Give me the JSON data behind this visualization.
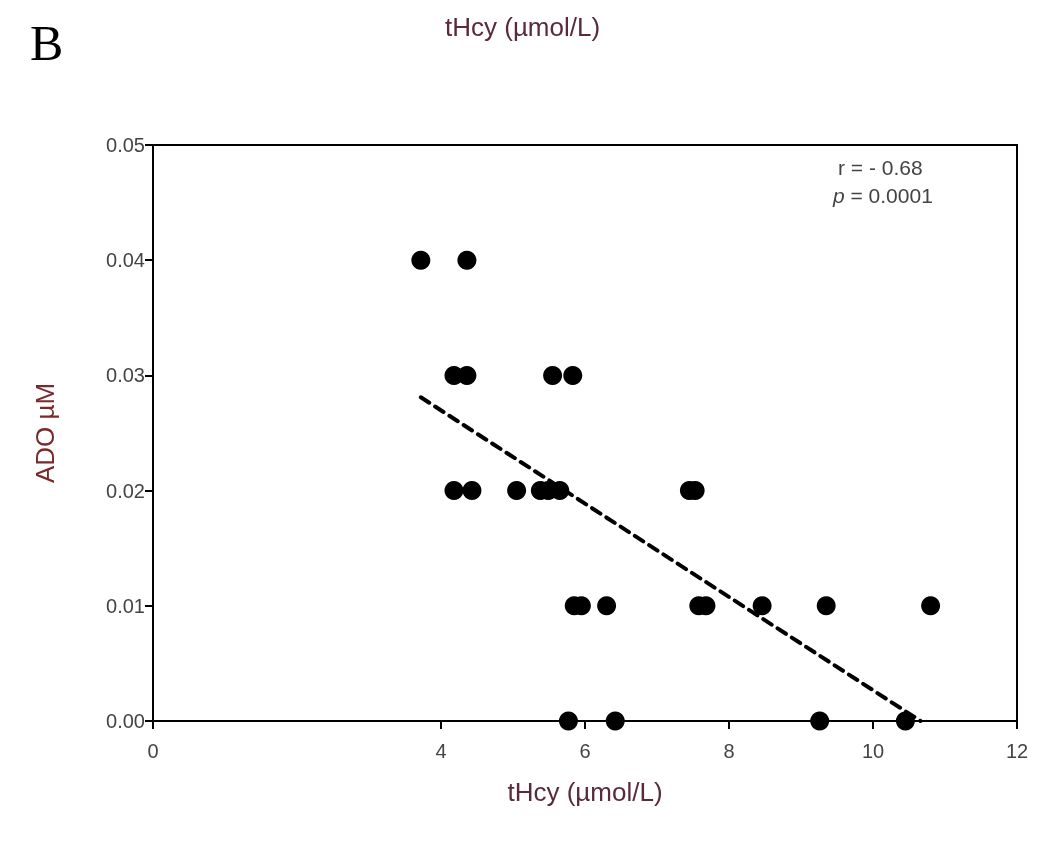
{
  "chart_data": {
    "type": "scatter",
    "xlabel": "tHcy (µmol/L)",
    "ylabel": "ADO µM",
    "annotations": [
      "B",
      "tHcy (µmol/L)",
      "r = - 0.68",
      "p = 0.0001"
    ],
    "xlim": [
      0,
      12
    ],
    "xticks": [
      0,
      4,
      6,
      8,
      10,
      12
    ],
    "ylim": [
      0,
      0.05
    ],
    "yticks": [
      {
        "value": 0,
        "label": "0.00"
      },
      0.01,
      0.02,
      0.03,
      0.04,
      0.05
    ],
    "grid": false,
    "marker": "circle",
    "series": [
      {
        "color": "#000000",
        "x": [
          3.72,
          4.36,
          4.18,
          4.36,
          5.55,
          5.83,
          4.18,
          4.43,
          5.05,
          5.38,
          5.49,
          5.65,
          7.45,
          7.53,
          5.85,
          5.95,
          6.3,
          7.58,
          7.68,
          8.46,
          9.35,
          10.8,
          5.77,
          6.42,
          9.26,
          10.45
        ],
        "values": [
          0.04,
          0.04,
          0.03,
          0.03,
          0.03,
          0.03,
          0.02,
          0.02,
          0.02,
          0.02,
          0.02,
          0.02,
          0.02,
          0.02,
          0.01,
          0.01,
          0.01,
          0.01,
          0.01,
          0.01,
          0.01,
          0.01,
          0,
          0,
          0,
          0
        ]
      },
      {
        "type": "line",
        "color": "#000000",
        "line_style": "dashed",
        "marker": "none",
        "x": [
          3.72,
          10.66
        ],
        "values": [
          0.0281,
          0
        ]
      }
    ]
  }
}
